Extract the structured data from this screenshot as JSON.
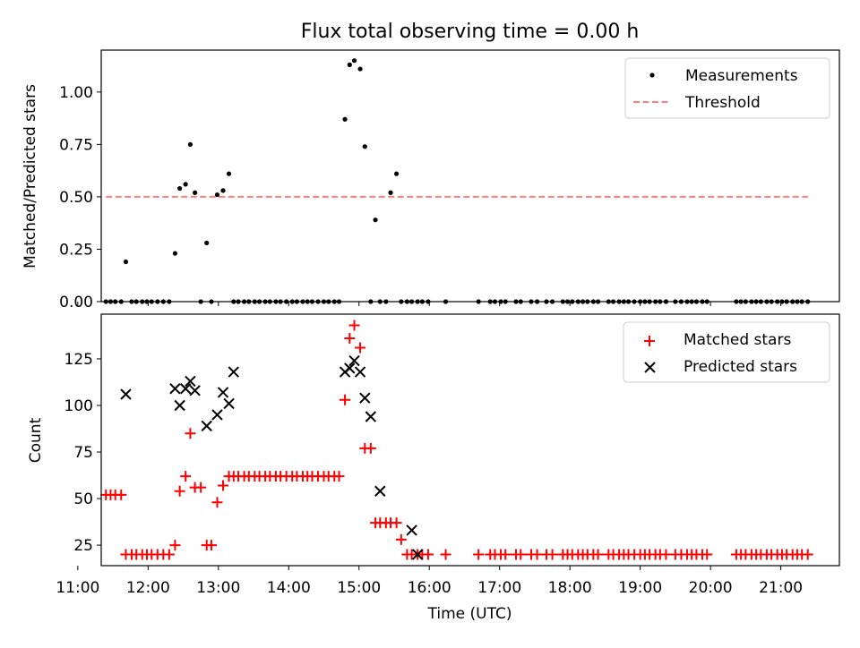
{
  "chart_data": [
    {
      "type": "scatter",
      "title": "Flux total observing time = 0.00 h",
      "xlabel": "",
      "ylabel": "Matched/Predicted stars",
      "xlim": [
        "11:20",
        "21:50"
      ],
      "ylim": [
        0,
        1.2
      ],
      "yticks": [
        "0.00",
        "0.25",
        "0.50",
        "0.75",
        "1.00"
      ],
      "grid": false,
      "legend_position": "top-right",
      "series": [
        {
          "name": "Measurements",
          "marker": "dot",
          "color": "#000000",
          "x": [
            "11:24",
            "11:28",
            "11:32",
            "11:37",
            "11:41",
            "11:46",
            "11:50",
            "11:55",
            "11:59",
            "12:03",
            "12:08",
            "12:13",
            "12:18",
            "12:23",
            "12:27",
            "12:32",
            "12:36",
            "12:40",
            "12:45",
            "12:50",
            "12:54",
            "12:59",
            "13:04",
            "13:09",
            "13:13",
            "13:17",
            "13:22",
            "13:26",
            "13:31",
            "13:35",
            "13:40",
            "13:44",
            "13:49",
            "13:53",
            "13:58",
            "14:03",
            "14:07",
            "14:12",
            "14:16",
            "14:20",
            "14:25",
            "14:30",
            "14:34",
            "14:39",
            "14:43",
            "14:48",
            "14:52",
            "14:56",
            "15:01",
            "15:05",
            "15:10",
            "15:14",
            "15:18",
            "15:23",
            "15:27",
            "15:32",
            "15:36",
            "15:41",
            "15:45",
            "15:50",
            "15:54",
            "15:59",
            "16:14",
            "16:42",
            "16:52",
            "16:56",
            "17:01",
            "17:05",
            "17:14",
            "17:18",
            "17:27",
            "17:32",
            "17:40",
            "17:45",
            "17:54",
            "17:58",
            "18:02",
            "18:07",
            "18:11",
            "18:15",
            "18:20",
            "18:24",
            "18:33",
            "18:37",
            "18:42",
            "18:46",
            "18:50",
            "18:55",
            "19:00",
            "19:04",
            "19:08",
            "19:13",
            "19:17",
            "19:22",
            "19:30",
            "19:35",
            "19:40",
            "19:44",
            "19:48",
            "19:53",
            "19:57",
            "20:22",
            "20:26",
            "20:30",
            "20:35",
            "20:39",
            "20:43",
            "20:48",
            "20:52",
            "20:57",
            "21:01",
            "21:05",
            "21:10",
            "21:14",
            "21:18",
            "21:23"
          ],
          "y": [
            0,
            0,
            0,
            0,
            0.19,
            0,
            0,
            0,
            0,
            0,
            0,
            0,
            0,
            0.23,
            0.54,
            0.56,
            0.75,
            0.52,
            0,
            0.28,
            0,
            0.51,
            0.53,
            0.61,
            0,
            0,
            0,
            0,
            0,
            0,
            0,
            0,
            0,
            0,
            0,
            0,
            0,
            0,
            0,
            0,
            0,
            0,
            0,
            0,
            0,
            0.87,
            1.13,
            1.15,
            1.11,
            0.74,
            0,
            0.39,
            0,
            0,
            0.52,
            0.61,
            0,
            0,
            0,
            0,
            0,
            0,
            0,
            0,
            0,
            0,
            0,
            0,
            0,
            0,
            0,
            0,
            0,
            0,
            0,
            0,
            0,
            0,
            0,
            0,
            0,
            0,
            0,
            0,
            0,
            0,
            0,
            0,
            0,
            0,
            0,
            0,
            0,
            0,
            0,
            0,
            0,
            0,
            0,
            0,
            0,
            0,
            0,
            0,
            0,
            0,
            0,
            0,
            0,
            0,
            0,
            0,
            0,
            0,
            0,
            0
          ]
        },
        {
          "name": "Threshold",
          "marker": "dashed-line",
          "color": "#ff7f7f",
          "x": [
            "11:24",
            "21:23"
          ],
          "y": [
            0.5,
            0.5
          ]
        }
      ]
    },
    {
      "type": "scatter",
      "title": "",
      "xlabel": "Time (UTC)",
      "ylabel": "Count",
      "xlim": [
        "11:20",
        "21:50"
      ],
      "ylim": [
        14,
        149
      ],
      "xticks": [
        "11:00",
        "12:00",
        "13:00",
        "14:00",
        "15:00",
        "16:00",
        "17:00",
        "18:00",
        "19:00",
        "20:00",
        "21:00"
      ],
      "yticks": [
        "25",
        "50",
        "75",
        "100",
        "125"
      ],
      "grid": false,
      "legend_position": "top-right",
      "series": [
        {
          "name": "Matched stars",
          "marker": "plus",
          "color": "#ff0000",
          "x": [
            "11:24",
            "11:28",
            "11:32",
            "11:37",
            "11:41",
            "11:46",
            "11:50",
            "11:55",
            "11:59",
            "12:03",
            "12:08",
            "12:13",
            "12:18",
            "12:23",
            "12:27",
            "12:32",
            "12:36",
            "12:40",
            "12:45",
            "12:50",
            "12:54",
            "12:59",
            "13:04",
            "13:09",
            "13:13",
            "13:17",
            "13:22",
            "13:26",
            "13:31",
            "13:35",
            "13:40",
            "13:44",
            "13:49",
            "13:53",
            "13:58",
            "14:03",
            "14:07",
            "14:12",
            "14:16",
            "14:20",
            "14:25",
            "14:30",
            "14:34",
            "14:39",
            "14:43",
            "14:48",
            "14:52",
            "14:56",
            "15:01",
            "15:05",
            "15:10",
            "15:14",
            "15:18",
            "15:23",
            "15:27",
            "15:32",
            "15:36",
            "15:41",
            "15:45",
            "15:50",
            "15:54",
            "15:59",
            "16:14",
            "16:42",
            "16:52",
            "16:56",
            "17:01",
            "17:05",
            "17:14",
            "17:18",
            "17:27",
            "17:32",
            "17:40",
            "17:45",
            "17:54",
            "17:58",
            "18:02",
            "18:07",
            "18:11",
            "18:15",
            "18:20",
            "18:24",
            "18:33",
            "18:37",
            "18:42",
            "18:46",
            "18:50",
            "18:55",
            "19:00",
            "19:04",
            "19:08",
            "19:13",
            "19:17",
            "19:22",
            "19:30",
            "19:35",
            "19:40",
            "19:44",
            "19:48",
            "19:53",
            "19:57",
            "20:22",
            "20:26",
            "20:30",
            "20:35",
            "20:39",
            "20:43",
            "20:48",
            "20:52",
            "20:57",
            "21:01",
            "21:05",
            "21:10",
            "21:14",
            "21:18",
            "21:23"
          ],
          "y": [
            52,
            52,
            52,
            52,
            20,
            20,
            20,
            20,
            20,
            20,
            20,
            20,
            20,
            25,
            54,
            62,
            85,
            56,
            56,
            25,
            25,
            48,
            57,
            62,
            62,
            62,
            62,
            62,
            62,
            62,
            62,
            62,
            62,
            62,
            62,
            62,
            62,
            62,
            62,
            62,
            62,
            62,
            62,
            62,
            62,
            103,
            136,
            143,
            131,
            77,
            77,
            37,
            37,
            37,
            37,
            37,
            28,
            20,
            20,
            20,
            20,
            20,
            20,
            20,
            20,
            20,
            20,
            20,
            20,
            20,
            20,
            20,
            20,
            20,
            20,
            20,
            20,
            20,
            20,
            20,
            20,
            20,
            20,
            20,
            20,
            20,
            20,
            20,
            20,
            20,
            20,
            20,
            20,
            20,
            20,
            20,
            20,
            20,
            20,
            20,
            20,
            20,
            20,
            20,
            20,
            20,
            20,
            20,
            20,
            20,
            20,
            20,
            20,
            20,
            20,
            20
          ]
        },
        {
          "name": "Predicted stars",
          "marker": "x",
          "color": "#000000",
          "x": [
            "11:41",
            "12:23",
            "12:27",
            "12:32",
            "12:36",
            "12:40",
            "12:50",
            "12:59",
            "13:04",
            "13:09",
            "13:13",
            "14:48",
            "14:52",
            "14:56",
            "15:01",
            "15:05",
            "15:10",
            "15:18",
            "15:45",
            "15:50"
          ],
          "y": [
            106,
            109,
            100,
            109,
            113,
            108,
            89,
            95,
            107,
            101,
            118,
            118,
            120,
            124,
            118,
            104,
            94,
            54,
            33,
            20
          ]
        }
      ]
    }
  ]
}
